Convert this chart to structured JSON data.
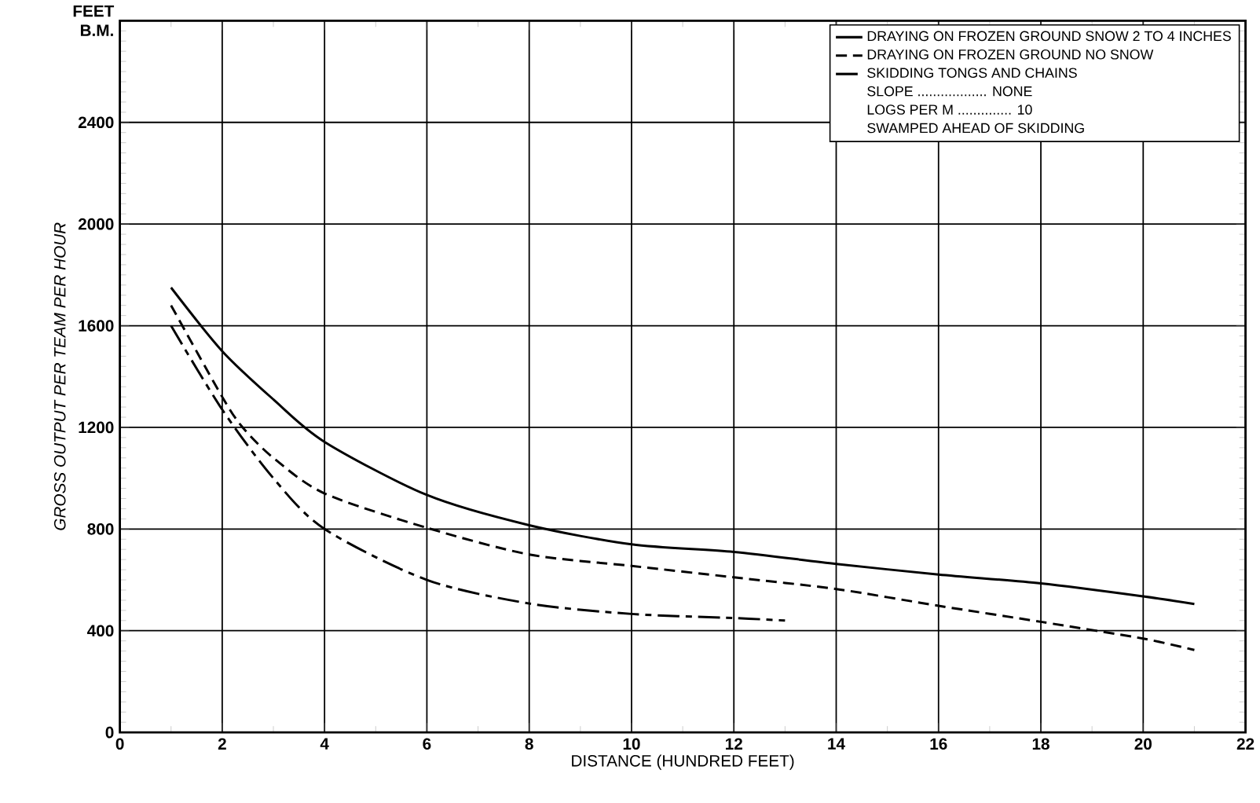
{
  "chart_data": {
    "type": "line",
    "xlabel": "DISTANCE  (HUNDRED FEET)",
    "ylabel": "GROSS OUTPUT PER TEAM PER HOUR",
    "xlim": [
      0,
      22
    ],
    "ylim": [
      0,
      2800
    ],
    "xticks": [
      0,
      2,
      4,
      6,
      8,
      10,
      12,
      14,
      16,
      18,
      20,
      22
    ],
    "yticks": [
      0,
      400,
      800,
      1200,
      1600,
      2000,
      2400,
      {
        "value": 2800,
        "label": "FEET B.M."
      }
    ],
    "grid": true,
    "legend": "top right",
    "series": [
      {
        "name": "DRAYING ON FROZEN GROUND SNOW  2 TO 4 INCHES",
        "color": "#000000",
        "line_style": "solid",
        "x": [
          1,
          2,
          3,
          4,
          6,
          8,
          10,
          12,
          14,
          16,
          18,
          20,
          21
        ],
        "values": [
          1750,
          1500,
          1310,
          1143,
          934,
          815,
          740,
          710,
          663,
          621,
          586,
          535,
          505
        ]
      },
      {
        "name": "DRAYING ON FROZEN GROUND NO SNOW",
        "color": "#000000",
        "line_style": "dashed",
        "x": [
          1,
          2,
          2.4,
          3,
          4,
          6,
          8,
          10,
          12,
          14,
          16,
          18,
          20,
          21
        ],
        "values": [
          1680,
          1320,
          1200,
          1080,
          940,
          805,
          700,
          655,
          610,
          564,
          498,
          435,
          369,
          324
        ]
      },
      {
        "name": "SKIDDING TONGS AND CHAINS",
        "color": "#000000",
        "line_style": "dashdot",
        "x": [
          1,
          2,
          3,
          4,
          6,
          8,
          10,
          12,
          13
        ],
        "values": [
          1600,
          1270,
          1000,
          800,
          600,
          507,
          466,
          450,
          440
        ]
      }
    ],
    "annotations": [
      "SLOPE .................. NONE",
      "LOGS PER M .............. 10",
      "SWAMPED AHEAD OF SKIDDING"
    ]
  }
}
